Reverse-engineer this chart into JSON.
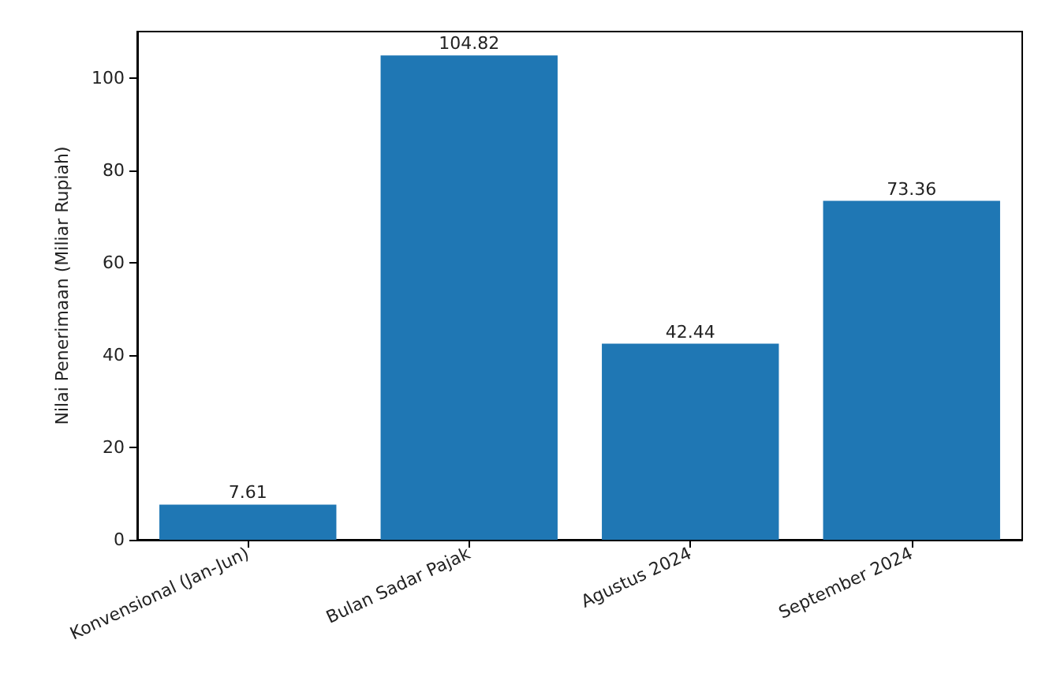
{
  "chart_data": {
    "type": "bar",
    "ylabel": "Nilai Penerimaan (Miliar Rupiah)",
    "categories": [
      "Konvensional (Jan-Jun)",
      "Bulan Sadar Pajak",
      "Agustus 2024",
      "September 2024"
    ],
    "values": [
      7.61,
      104.82,
      42.44,
      73.36
    ],
    "color": "#1f77b4",
    "ylim": [
      0,
      110
    ],
    "yticks": [
      0,
      20,
      40,
      60,
      80,
      100
    ],
    "grid": false,
    "data_labels": true
  }
}
